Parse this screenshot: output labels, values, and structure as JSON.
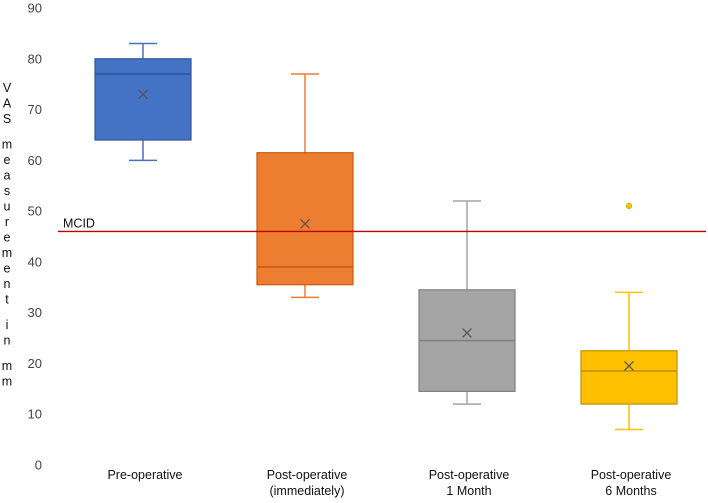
{
  "chart_data": {
    "type": "box",
    "title": "",
    "xlabel": "",
    "ylabel": "VAS measurement in mm",
    "ylim": [
      0,
      90
    ],
    "yticks": [
      0,
      10,
      20,
      30,
      40,
      50,
      60,
      70,
      80,
      90
    ],
    "grid": false,
    "legend": "none",
    "categories": [
      [
        "Pre-operative"
      ],
      [
        "Post-operative",
        "(immediately)"
      ],
      [
        "Post-operative",
        "1 Month"
      ],
      [
        "Post-operative",
        "6 Months"
      ]
    ],
    "series": [
      {
        "min": 60,
        "q1": 64,
        "median": 77,
        "q3": 80,
        "max": 83,
        "mean": 73,
        "outliers": [],
        "color": "#4472C4",
        "edge": "#2F5597"
      },
      {
        "min": 33,
        "q1": 35.5,
        "median": 39,
        "q3": 61.5,
        "max": 77,
        "mean": 47.5,
        "outliers": [],
        "color": "#ED7D31",
        "edge": "#C55A11"
      },
      {
        "min": 12,
        "q1": 14.5,
        "median": 24.5,
        "q3": 34.5,
        "max": 52,
        "mean": 26,
        "outliers": [],
        "color": "#A5A5A5",
        "edge": "#7F7F7F"
      },
      {
        "min": 7,
        "q1": 12,
        "median": 18.5,
        "q3": 22.5,
        "max": 34,
        "mean": 19.5,
        "outliers": [
          51
        ],
        "color": "#FFC000",
        "edge": "#BF9000"
      }
    ],
    "reference_line": {
      "label": "MCID",
      "value": 46,
      "color": "#C00000"
    }
  }
}
